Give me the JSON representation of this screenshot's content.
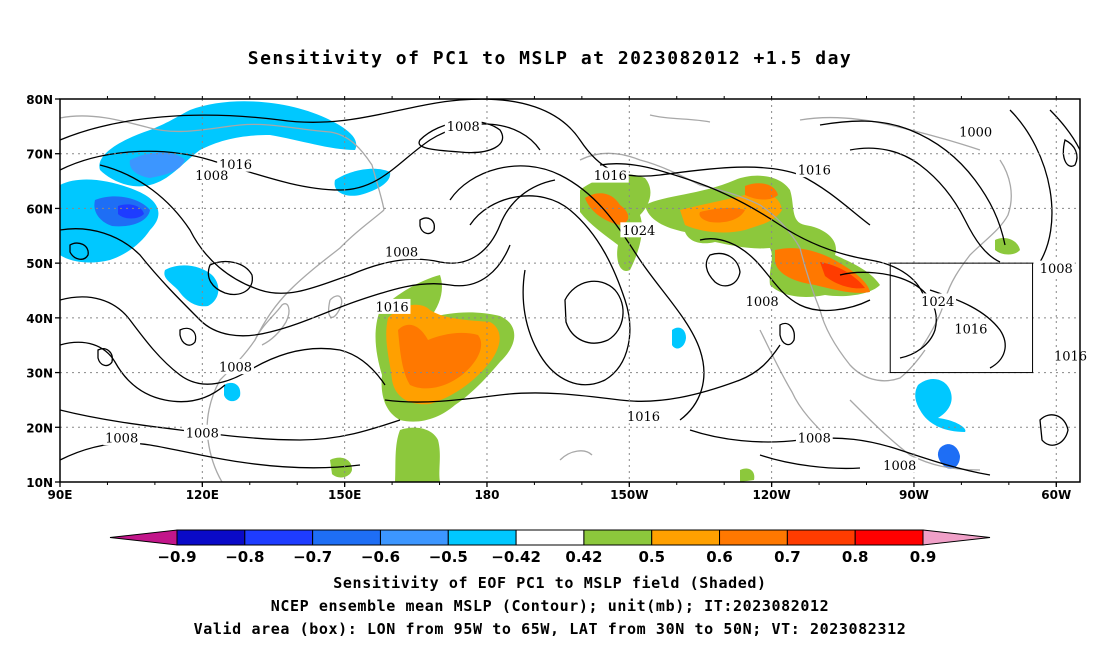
{
  "title": "Sensitivity of PC1 to MSLP at 2023082012 +1.5 day",
  "map": {
    "lon_range": [
      90,
      305
    ],
    "lat_range": [
      10,
      80
    ],
    "lat_ticks": [
      {
        "lat": 80,
        "label": "80N"
      },
      {
        "lat": 70,
        "label": "70N"
      },
      {
        "lat": 60,
        "label": "60N"
      },
      {
        "lat": 50,
        "label": "50N"
      },
      {
        "lat": 40,
        "label": "40N"
      },
      {
        "lat": 30,
        "label": "30N"
      },
      {
        "lat": 20,
        "label": "20N"
      },
      {
        "lat": 10,
        "label": "10N"
      }
    ],
    "lon_ticks": [
      {
        "lon": 90,
        "label": "90E"
      },
      {
        "lon": 120,
        "label": "120E"
      },
      {
        "lon": 150,
        "label": "150E"
      },
      {
        "lon": 180,
        "label": "180"
      },
      {
        "lon": 210,
        "label": "150W"
      },
      {
        "lon": 240,
        "label": "120W"
      },
      {
        "lon": 270,
        "label": "90W"
      },
      {
        "lon": 300,
        "label": "60W"
      }
    ],
    "valid_box": {
      "lon_min": 265,
      "lon_max": 295,
      "lat_min": 30,
      "lat_max": 50
    },
    "contour_labels": [
      {
        "text": "1008",
        "lon": 175,
        "lat": 75
      },
      {
        "text": "1016",
        "lon": 127,
        "lat": 68
      },
      {
        "text": "1008",
        "lon": 122,
        "lat": 66
      },
      {
        "text": "1016",
        "lon": 206,
        "lat": 66
      },
      {
        "text": "1016",
        "lon": 249,
        "lat": 67
      },
      {
        "text": "1000",
        "lon": 283,
        "lat": 74
      },
      {
        "text": "1024",
        "lon": 212,
        "lat": 56
      },
      {
        "text": "1008",
        "lon": 162,
        "lat": 52
      },
      {
        "text": "1016",
        "lon": 160,
        "lat": 42
      },
      {
        "text": "1008",
        "lon": 238,
        "lat": 43
      },
      {
        "text": "1024",
        "lon": 275,
        "lat": 43
      },
      {
        "text": "1016",
        "lon": 282,
        "lat": 38
      },
      {
        "text": "1008",
        "lon": 300,
        "lat": 49
      },
      {
        "text": "1016",
        "lon": 303,
        "lat": 33
      },
      {
        "text": "1008",
        "lon": 127,
        "lat": 31
      },
      {
        "text": "1016",
        "lon": 213,
        "lat": 22
      },
      {
        "text": "1008",
        "lon": 103,
        "lat": 18
      },
      {
        "text": "1008",
        "lon": 120,
        "lat": 19
      },
      {
        "text": "1008",
        "lon": 249,
        "lat": 18
      },
      {
        "text": "1008",
        "lon": 267,
        "lat": 13
      }
    ]
  },
  "colorbar": {
    "colors": [
      "#c2168a",
      "#0a0ac8",
      "#1e3cff",
      "#1e6ef5",
      "#3c96ff",
      "#00c8ff",
      "#ffffff",
      "#8cc83c",
      "#ffa000",
      "#ff7800",
      "#ff3c00",
      "#ff0000",
      "#f0a0c8"
    ],
    "labels": [
      "-0.9",
      "-0.8",
      "-0.7",
      "-0.6",
      "-0.5",
      "-0.42",
      "0.42",
      "0.5",
      "0.6",
      "0.7",
      "0.8",
      "0.9"
    ]
  },
  "footer": {
    "line1": "Sensitivity of EOF PC1 to MSLP field (Shaded)",
    "line2": "NCEP ensemble mean MSLP (Contour); unit(mb); IT:2023082012",
    "line3": "Valid area (box): LON from 95W to 65W, LAT from 30N to 50N; VT: 2023082312"
  }
}
